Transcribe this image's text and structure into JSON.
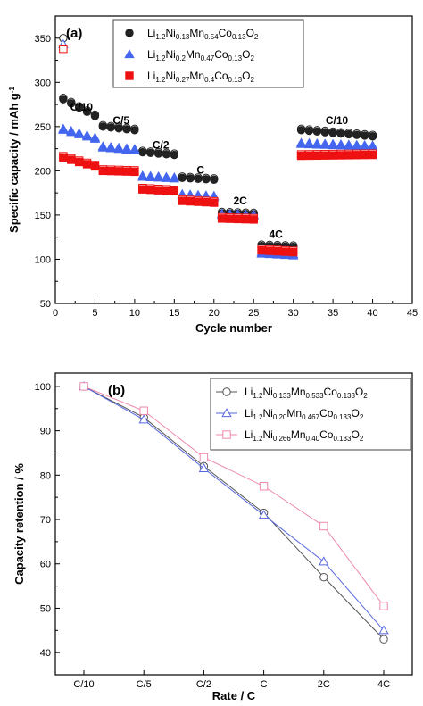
{
  "chart_data": [
    {
      "panel_label": "(a)",
      "type": "scatter",
      "xlabel": "Cycle number",
      "ylabel": "Specific capacity / mAh g",
      "ylabel_sup": "-1",
      "xlim": [
        0,
        45
      ],
      "ylim": [
        50,
        375
      ],
      "xticks": [
        "0",
        "5",
        "10",
        "15",
        "20",
        "25",
        "30",
        "35",
        "40",
        "45"
      ],
      "yticks": [
        "50",
        "100",
        "150",
        "200",
        "250",
        "300",
        "350"
      ],
      "rate_labels": [
        {
          "text": "C/10",
          "x": 3.3,
          "y": 268
        },
        {
          "text": "C/5",
          "x": 8.3,
          "y": 253
        },
        {
          "text": "C/2",
          "x": 13.3,
          "y": 225
        },
        {
          "text": "C",
          "x": 18.3,
          "y": 197
        },
        {
          "text": "2C",
          "x": 23.3,
          "y": 162
        },
        {
          "text": "4C",
          "x": 27.8,
          "y": 124
        },
        {
          "text": "C/10",
          "x": 35.5,
          "y": 253
        }
      ],
      "legend": {
        "placement": "top-right",
        "entries": [
          {
            "parts": [
              [
                "Li",
                ""
              ],
              [
                "1.2",
                "sub"
              ],
              [
                "Ni",
                ""
              ],
              [
                "0.13",
                "sub"
              ],
              [
                "Mn",
                ""
              ],
              [
                "0.54",
                "sub"
              ],
              [
                "Co",
                ""
              ],
              [
                "0.13",
                "sub"
              ],
              [
                "O",
                ""
              ],
              [
                "2",
                "sub"
              ]
            ]
          },
          {
            "parts": [
              [
                "Li",
                ""
              ],
              [
                "1.2",
                "sub"
              ],
              [
                "Ni",
                ""
              ],
              [
                "0.2",
                "sub"
              ],
              [
                "Mn",
                ""
              ],
              [
                "0.47",
                "sub"
              ],
              [
                "Co",
                ""
              ],
              [
                "0.13",
                "sub"
              ],
              [
                "O",
                ""
              ],
              [
                "2",
                "sub"
              ]
            ]
          },
          {
            "parts": [
              [
                "Li",
                ""
              ],
              [
                "1.2",
                "sub"
              ],
              [
                "Ni",
                ""
              ],
              [
                "0.27",
                "sub"
              ],
              [
                "Mn",
                ""
              ],
              [
                "0.4",
                "sub"
              ],
              [
                "Co",
                ""
              ],
              [
                "0.13",
                "sub"
              ],
              [
                "O",
                ""
              ],
              [
                "2",
                "sub"
              ]
            ]
          }
        ]
      },
      "series": [
        {
          "marker": "circle",
          "color": "#222222",
          "charge_color": "#ffffff",
          "segments": [
            {
              "start": 1,
              "end": 5,
              "first": 281,
              "last": 262
            },
            {
              "start": 6,
              "end": 10,
              "first": 250,
              "last": 246
            },
            {
              "start": 11,
              "end": 15,
              "first": 221,
              "last": 218
            },
            {
              "start": 16,
              "end": 20,
              "first": 192,
              "last": 190
            },
            {
              "start": 21,
              "end": 25,
              "first": 152,
              "last": 151
            },
            {
              "start": 26,
              "end": 30,
              "first": 115,
              "last": 114
            },
            {
              "start": 31,
              "end": 40,
              "first": 246,
              "last": 239
            }
          ],
          "first_charge": 350
        },
        {
          "marker": "triangle",
          "color": "#4466ee",
          "charge_color": "#ffffff",
          "segments": [
            {
              "start": 1,
              "end": 5,
              "first": 246,
              "last": 236
            },
            {
              "start": 6,
              "end": 10,
              "first": 226,
              "last": 223
            },
            {
              "start": 11,
              "end": 15,
              "first": 193,
              "last": 191
            },
            {
              "start": 16,
              "end": 20,
              "first": 172,
              "last": 170
            },
            {
              "start": 21,
              "end": 25,
              "first": 150,
              "last": 149
            },
            {
              "start": 26,
              "end": 30,
              "first": 106,
              "last": 104
            },
            {
              "start": 31,
              "end": 40,
              "first": 230,
              "last": 227
            }
          ],
          "first_charge": 343
        },
        {
          "marker": "square",
          "color": "#ee1111",
          "charge_color": "#ffffff",
          "segments": [
            {
              "start": 1,
              "end": 5,
              "first": 215,
              "last": 205
            },
            {
              "start": 6,
              "end": 10,
              "first": 200,
              "last": 199
            },
            {
              "start": 11,
              "end": 15,
              "first": 179,
              "last": 177
            },
            {
              "start": 16,
              "end": 20,
              "first": 166,
              "last": 164
            },
            {
              "start": 21,
              "end": 25,
              "first": 146,
              "last": 145
            },
            {
              "start": 26,
              "end": 30,
              "first": 110,
              "last": 108
            },
            {
              "start": 31,
              "end": 40,
              "first": 217,
              "last": 218
            }
          ],
          "first_charge": 338
        }
      ]
    },
    {
      "panel_label": "(b)",
      "type": "line",
      "xlabel": "Rate / C",
      "ylabel": "Capacity retention / %",
      "ylim": [
        35,
        103
      ],
      "categories": [
        "C/10",
        "C/5",
        "C/2",
        "C",
        "2C",
        "4C"
      ],
      "yticks": [
        "40",
        "50",
        "60",
        "70",
        "80",
        "90",
        "100"
      ],
      "legend": {
        "placement": "top-right",
        "entries": [
          {
            "parts": [
              [
                "Li",
                ""
              ],
              [
                "1.2",
                "sub"
              ],
              [
                "Ni",
                ""
              ],
              [
                "0.133",
                "sub"
              ],
              [
                "Mn",
                ""
              ],
              [
                "0.533",
                "sub"
              ],
              [
                "Co",
                ""
              ],
              [
                "0.133",
                "sub"
              ],
              [
                "O",
                ""
              ],
              [
                "2",
                "sub"
              ]
            ]
          },
          {
            "parts": [
              [
                "Li",
                ""
              ],
              [
                "1.2",
                "sub"
              ],
              [
                "Ni",
                ""
              ],
              [
                "0.20",
                "sub"
              ],
              [
                "Mn",
                ""
              ],
              [
                "0.467",
                "sub"
              ],
              [
                "Co",
                ""
              ],
              [
                "0.133",
                "sub"
              ],
              [
                "O",
                ""
              ],
              [
                "2",
                "sub"
              ]
            ]
          },
          {
            "parts": [
              [
                "Li",
                ""
              ],
              [
                "1.2",
                "sub"
              ],
              [
                "Ni",
                ""
              ],
              [
                "0.266",
                "sub"
              ],
              [
                "Mn",
                ""
              ],
              [
                "0.40",
                "sub"
              ],
              [
                "Co",
                ""
              ],
              [
                "0.133",
                "sub"
              ],
              [
                "O",
                ""
              ],
              [
                "2",
                "sub"
              ]
            ]
          }
        ]
      },
      "series": [
        {
          "marker": "circle",
          "color": "#555555",
          "values": [
            100,
            93.0,
            82.0,
            71.5,
            57.0,
            43.0
          ]
        },
        {
          "marker": "triangle",
          "color": "#5566dd",
          "values": [
            100,
            92.5,
            81.5,
            71.0,
            60.5,
            45.0
          ]
        },
        {
          "marker": "square",
          "color": "#ee88aa",
          "values": [
            100,
            94.5,
            84.0,
            77.5,
            68.5,
            50.5
          ]
        }
      ]
    }
  ]
}
